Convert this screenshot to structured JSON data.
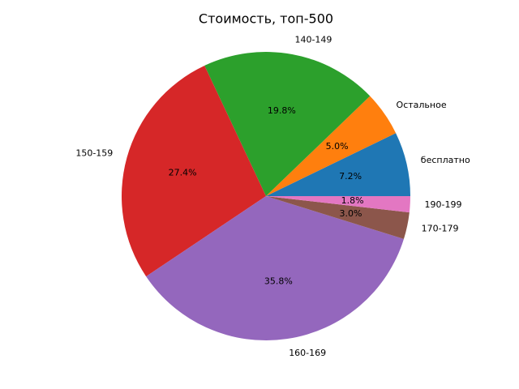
{
  "chart_data": {
    "type": "pie",
    "title": "Стоимость, топ-500",
    "categories": [
      "бесплатно",
      "Остальное",
      "140-149",
      "150-159",
      "160-169",
      "170-179",
      "190-199"
    ],
    "values": [
      7.2,
      5.0,
      19.8,
      27.4,
      35.8,
      3.0,
      1.8
    ],
    "value_labels": [
      "7.2%",
      "5.0%",
      "19.8%",
      "27.4%",
      "35.8%",
      "3.0%",
      "1.8%"
    ],
    "colors": [
      "#1f77b4",
      "#ff7f0e",
      "#2ca02c",
      "#d62728",
      "#9467bd",
      "#8c564b",
      "#e377c2"
    ]
  }
}
